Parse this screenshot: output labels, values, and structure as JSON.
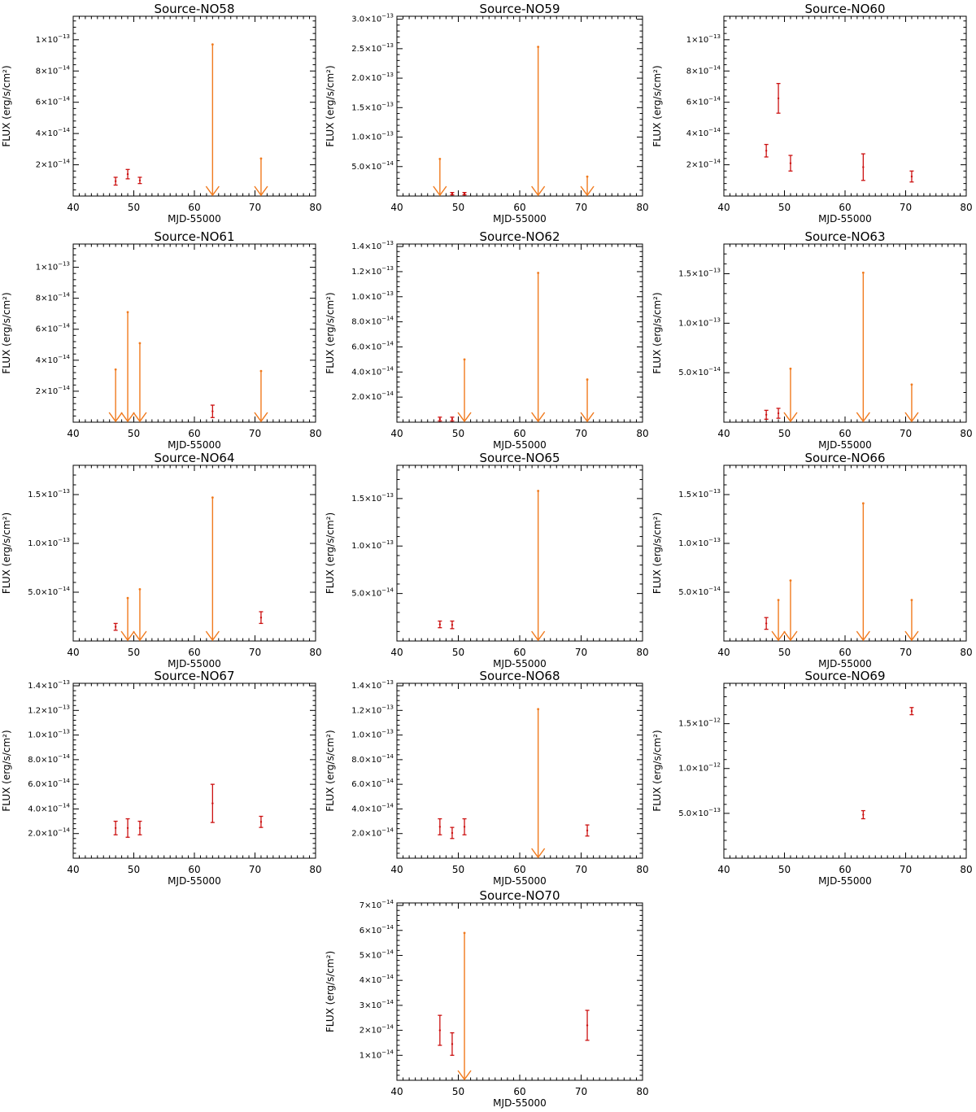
{
  "chart_data": [
    {
      "type": "scatter",
      "title": "Source-NO58",
      "xlabel": "MJD-55000",
      "ylabel": "FLUX (erg/s/cm²)",
      "xlim": [
        40,
        80
      ],
      "xticks": [
        40,
        50,
        60,
        70,
        80
      ],
      "ylim": [
        0,
        1.15e-13
      ],
      "yticks": [
        {
          "v": 2e-14,
          "m": "2×10",
          "e": "−14"
        },
        {
          "v": 4e-14,
          "m": "4×10",
          "e": "−14"
        },
        {
          "v": 6e-14,
          "m": "6×10",
          "e": "−14"
        },
        {
          "v": 8e-14,
          "m": "8×10",
          "e": "−14"
        },
        {
          "v": 1e-13,
          "m": "1×10",
          "e": "−13"
        }
      ],
      "detections": [
        {
          "x": 47,
          "lo": 7e-15,
          "hi": 1.2e-14
        },
        {
          "x": 49,
          "lo": 1.1e-14,
          "hi": 1.7e-14
        },
        {
          "x": 51,
          "lo": 8e-15,
          "hi": 1.2e-14
        }
      ],
      "upper_limits": [
        {
          "x": 63,
          "y": 9.7e-14
        },
        {
          "x": 71,
          "y": 2.4e-14
        }
      ]
    },
    {
      "type": "scatter",
      "title": "Source-NO59",
      "xlabel": "MJD-55000",
      "ylabel": "FLUX (erg/s/cm²)",
      "xlim": [
        40,
        80
      ],
      "xticks": [
        40,
        50,
        60,
        70,
        80
      ],
      "ylim": [
        0,
        3.05e-13
      ],
      "yticks": [
        {
          "v": 5e-14,
          "m": "5.0×10",
          "e": "−14"
        },
        {
          "v": 1e-13,
          "m": "1.0×10",
          "e": "−13"
        },
        {
          "v": 1.5e-13,
          "m": "1.5×10",
          "e": "−13"
        },
        {
          "v": 2e-13,
          "m": "2.0×10",
          "e": "−13"
        },
        {
          "v": 2.5e-13,
          "m": "2.5×10",
          "e": "−13"
        },
        {
          "v": 3e-13,
          "m": "3.0×10",
          "e": "−13"
        }
      ],
      "detections": [
        {
          "x": 49,
          "lo": 2e-15,
          "hi": 6e-15
        },
        {
          "x": 51,
          "lo": 2e-15,
          "hi": 6e-15
        }
      ],
      "upper_limits": [
        {
          "x": 47,
          "y": 6.3e-14
        },
        {
          "x": 63,
          "y": 2.53e-13
        },
        {
          "x": 71,
          "y": 3.3e-14
        }
      ]
    },
    {
      "type": "scatter",
      "title": "Source-NO60",
      "xlabel": "MJD-55000",
      "ylabel": "FLUX (erg/s/cm²)",
      "xlim": [
        40,
        80
      ],
      "xticks": [
        40,
        50,
        60,
        70,
        80
      ],
      "ylim": [
        0,
        1.15e-13
      ],
      "yticks": [
        {
          "v": 2e-14,
          "m": "2×10",
          "e": "−14"
        },
        {
          "v": 4e-14,
          "m": "4×10",
          "e": "−14"
        },
        {
          "v": 6e-14,
          "m": "6×10",
          "e": "−14"
        },
        {
          "v": 8e-14,
          "m": "8×10",
          "e": "−14"
        },
        {
          "v": 1e-13,
          "m": "1×10",
          "e": "−13"
        }
      ],
      "detections": [
        {
          "x": 47,
          "lo": 2.5e-14,
          "hi": 3.3e-14
        },
        {
          "x": 49,
          "lo": 5.3e-14,
          "hi": 7.2e-14
        },
        {
          "x": 51,
          "lo": 1.6e-14,
          "hi": 2.6e-14
        },
        {
          "x": 63,
          "lo": 1e-14,
          "hi": 2.7e-14
        },
        {
          "x": 71,
          "lo": 9e-15,
          "hi": 1.6e-14
        }
      ],
      "upper_limits": []
    },
    {
      "type": "scatter",
      "title": "Source-NO61",
      "xlabel": "MJD-55000",
      "ylabel": "FLUX (erg/s/cm²)",
      "xlim": [
        40,
        80
      ],
      "xticks": [
        40,
        50,
        60,
        70,
        80
      ],
      "ylim": [
        0,
        1.15e-13
      ],
      "yticks": [
        {
          "v": 2e-14,
          "m": "2×10",
          "e": "−14"
        },
        {
          "v": 4e-14,
          "m": "4×10",
          "e": "−14"
        },
        {
          "v": 6e-14,
          "m": "6×10",
          "e": "−14"
        },
        {
          "v": 8e-14,
          "m": "8×10",
          "e": "−14"
        },
        {
          "v": 1e-13,
          "m": "1×10",
          "e": "−13"
        }
      ],
      "detections": [
        {
          "x": 63,
          "lo": 3e-15,
          "hi": 1.1e-14
        }
      ],
      "upper_limits": [
        {
          "x": 47,
          "y": 3.4e-14
        },
        {
          "x": 49,
          "y": 7.1e-14
        },
        {
          "x": 51,
          "y": 5.1e-14
        },
        {
          "x": 71,
          "y": 3.3e-14
        }
      ]
    },
    {
      "type": "scatter",
      "title": "Source-NO62",
      "xlabel": "MJD-55000",
      "ylabel": "FLUX (erg/s/cm²)",
      "xlim": [
        40,
        80
      ],
      "xticks": [
        40,
        50,
        60,
        70,
        80
      ],
      "ylim": [
        0,
        1.42e-13
      ],
      "yticks": [
        {
          "v": 2e-14,
          "m": "2.0×10",
          "e": "−14"
        },
        {
          "v": 4e-14,
          "m": "4.0×10",
          "e": "−14"
        },
        {
          "v": 6e-14,
          "m": "6.0×10",
          "e": "−14"
        },
        {
          "v": 8e-14,
          "m": "8.0×10",
          "e": "−14"
        },
        {
          "v": 1e-13,
          "m": "1.0×10",
          "e": "−13"
        },
        {
          "v": 1.2e-13,
          "m": "1.2×10",
          "e": "−13"
        },
        {
          "v": 1.4e-13,
          "m": "1.4×10",
          "e": "−13"
        }
      ],
      "detections": [
        {
          "x": 47,
          "lo": 1e-15,
          "hi": 4e-15
        },
        {
          "x": 49,
          "lo": 1e-15,
          "hi": 4e-15
        }
      ],
      "upper_limits": [
        {
          "x": 51,
          "y": 5e-14
        },
        {
          "x": 63,
          "y": 1.19e-13
        },
        {
          "x": 71,
          "y": 3.4e-14
        }
      ]
    },
    {
      "type": "scatter",
      "title": "Source-NO63",
      "xlabel": "MJD-55000",
      "ylabel": "FLUX (erg/s/cm²)",
      "xlim": [
        40,
        80
      ],
      "xticks": [
        40,
        50,
        60,
        70,
        80
      ],
      "ylim": [
        0,
        1.8e-13
      ],
      "yticks": [
        {
          "v": 5e-14,
          "m": "5.0×10",
          "e": "−14"
        },
        {
          "v": 1e-13,
          "m": "1.0×10",
          "e": "−13"
        },
        {
          "v": 1.5e-13,
          "m": "1.5×10",
          "e": "−13"
        }
      ],
      "detections": [
        {
          "x": 47,
          "lo": 3e-15,
          "hi": 1.2e-14
        },
        {
          "x": 49,
          "lo": 4e-15,
          "hi": 1.4e-14
        }
      ],
      "upper_limits": [
        {
          "x": 51,
          "y": 5.4e-14
        },
        {
          "x": 63,
          "y": 1.51e-13
        },
        {
          "x": 71,
          "y": 3.8e-14
        }
      ]
    },
    {
      "type": "scatter",
      "title": "Source-NO64",
      "xlabel": "MJD-55000",
      "ylabel": "FLUX (erg/s/cm²)",
      "xlim": [
        40,
        80
      ],
      "xticks": [
        40,
        50,
        60,
        70,
        80
      ],
      "ylim": [
        0,
        1.8e-13
      ],
      "yticks": [
        {
          "v": 5e-14,
          "m": "5.0×10",
          "e": "−14"
        },
        {
          "v": 1e-13,
          "m": "1.0×10",
          "e": "−13"
        },
        {
          "v": 1.5e-13,
          "m": "1.5×10",
          "e": "−13"
        }
      ],
      "detections": [
        {
          "x": 47,
          "lo": 1.1e-14,
          "hi": 1.8e-14
        },
        {
          "x": 71,
          "lo": 1.8e-14,
          "hi": 3e-14
        }
      ],
      "upper_limits": [
        {
          "x": 49,
          "y": 4.4e-14
        },
        {
          "x": 51,
          "y": 5.3e-14
        },
        {
          "x": 63,
          "y": 1.47e-13
        }
      ]
    },
    {
      "type": "scatter",
      "title": "Source-NO65",
      "xlabel": "MJD-55000",
      "ylabel": "FLUX (erg/s/cm²)",
      "xlim": [
        40,
        80
      ],
      "xticks": [
        40,
        50,
        60,
        70,
        80
      ],
      "ylim": [
        0,
        1.85e-13
      ],
      "yticks": [
        {
          "v": 5e-14,
          "m": "5.0×10",
          "e": "−14"
        },
        {
          "v": 1e-13,
          "m": "1.0×10",
          "e": "−13"
        },
        {
          "v": 1.5e-13,
          "m": "1.5×10",
          "e": "−13"
        }
      ],
      "detections": [
        {
          "x": 47,
          "lo": 1.4e-14,
          "hi": 2.1e-14
        },
        {
          "x": 49,
          "lo": 1.3e-14,
          "hi": 2.1e-14
        }
      ],
      "upper_limits": [
        {
          "x": 63,
          "y": 1.58e-13
        }
      ]
    },
    {
      "type": "scatter",
      "title": "Source-NO66",
      "xlabel": "MJD-55000",
      "ylabel": "FLUX (erg/s/cm²)",
      "xlim": [
        40,
        80
      ],
      "xticks": [
        40,
        50,
        60,
        70,
        80
      ],
      "ylim": [
        0,
        1.8e-13
      ],
      "yticks": [
        {
          "v": 5e-14,
          "m": "5.0×10",
          "e": "−14"
        },
        {
          "v": 1e-13,
          "m": "1.0×10",
          "e": "−13"
        },
        {
          "v": 1.5e-13,
          "m": "1.5×10",
          "e": "−13"
        }
      ],
      "detections": [
        {
          "x": 47,
          "lo": 1.2e-14,
          "hi": 2.4e-14
        }
      ],
      "upper_limits": [
        {
          "x": 49,
          "y": 4.2e-14
        },
        {
          "x": 51,
          "y": 6.2e-14
        },
        {
          "x": 63,
          "y": 1.41e-13
        },
        {
          "x": 71,
          "y": 4.2e-14
        }
      ]
    },
    {
      "type": "scatter",
      "title": "Source-NO67",
      "xlabel": "MJD-55000",
      "ylabel": "FLUX (erg/s/cm²)",
      "xlim": [
        40,
        80
      ],
      "xticks": [
        40,
        50,
        60,
        70,
        80
      ],
      "ylim": [
        0,
        1.42e-13
      ],
      "yticks": [
        {
          "v": 2e-14,
          "m": "2.0×10",
          "e": "−14"
        },
        {
          "v": 4e-14,
          "m": "4.0×10",
          "e": "−14"
        },
        {
          "v": 6e-14,
          "m": "6.0×10",
          "e": "−14"
        },
        {
          "v": 8e-14,
          "m": "8.0×10",
          "e": "−14"
        },
        {
          "v": 1e-13,
          "m": "1.0×10",
          "e": "−13"
        },
        {
          "v": 1.2e-13,
          "m": "1.2×10",
          "e": "−13"
        },
        {
          "v": 1.4e-13,
          "m": "1.4×10",
          "e": "−13"
        }
      ],
      "detections": [
        {
          "x": 47,
          "lo": 1.9e-14,
          "hi": 3e-14
        },
        {
          "x": 49,
          "lo": 1.7e-14,
          "hi": 3.2e-14
        },
        {
          "x": 51,
          "lo": 1.9e-14,
          "hi": 3e-14
        },
        {
          "x": 63,
          "lo": 2.9e-14,
          "hi": 6e-14
        },
        {
          "x": 71,
          "lo": 2.5e-14,
          "hi": 3.4e-14
        }
      ],
      "upper_limits": []
    },
    {
      "type": "scatter",
      "title": "Source-NO68",
      "xlabel": "MJD-55000",
      "ylabel": "FLUX (erg/s/cm²)",
      "xlim": [
        40,
        80
      ],
      "xticks": [
        40,
        50,
        60,
        70,
        80
      ],
      "ylim": [
        0,
        1.42e-13
      ],
      "yticks": [
        {
          "v": 2e-14,
          "m": "2.0×10",
          "e": "−14"
        },
        {
          "v": 4e-14,
          "m": "4.0×10",
          "e": "−14"
        },
        {
          "v": 6e-14,
          "m": "6.0×10",
          "e": "−14"
        },
        {
          "v": 8e-14,
          "m": "8.0×10",
          "e": "−14"
        },
        {
          "v": 1e-13,
          "m": "1.0×10",
          "e": "−13"
        },
        {
          "v": 1.2e-13,
          "m": "1.2×10",
          "e": "−13"
        },
        {
          "v": 1.4e-13,
          "m": "1.4×10",
          "e": "−13"
        }
      ],
      "detections": [
        {
          "x": 47,
          "lo": 1.9e-14,
          "hi": 3.2e-14
        },
        {
          "x": 49,
          "lo": 1.6e-14,
          "hi": 2.5e-14
        },
        {
          "x": 51,
          "lo": 1.9e-14,
          "hi": 3.2e-14
        },
        {
          "x": 71,
          "lo": 1.8e-14,
          "hi": 2.7e-14
        }
      ],
      "upper_limits": [
        {
          "x": 63,
          "y": 1.21e-13
        }
      ]
    },
    {
      "type": "scatter",
      "title": "Source-NO69",
      "xlabel": "MJD-55000",
      "ylabel": "FLUX (erg/s/cm²)",
      "xlim": [
        40,
        80
      ],
      "xticks": [
        40,
        50,
        60,
        70,
        80
      ],
      "ylim": [
        0,
        1.95e-12
      ],
      "yticks": [
        {
          "v": 5e-13,
          "m": "5.0×10",
          "e": "−13"
        },
        {
          "v": 1e-12,
          "m": "1.0×10",
          "e": "−12"
        },
        {
          "v": 1.5e-12,
          "m": "1.5×10",
          "e": "−12"
        }
      ],
      "detections": [
        {
          "x": 63,
          "lo": 4.4e-13,
          "hi": 5.3e-13
        },
        {
          "x": 71,
          "lo": 1.6e-12,
          "hi": 1.68e-12
        }
      ],
      "upper_limits": []
    },
    {
      "type": "scatter",
      "title": "Source-NO70",
      "xlabel": "MJD-55000",
      "ylabel": "FLUX (erg/s/cm²)",
      "xlim": [
        40,
        80
      ],
      "xticks": [
        40,
        50,
        60,
        70,
        80
      ],
      "ylim": [
        0,
        7.1e-14
      ],
      "yticks": [
        {
          "v": 1e-14,
          "m": "1×10",
          "e": "−14"
        },
        {
          "v": 2e-14,
          "m": "2×10",
          "e": "−14"
        },
        {
          "v": 3e-14,
          "m": "3×10",
          "e": "−14"
        },
        {
          "v": 4e-14,
          "m": "4×10",
          "e": "−14"
        },
        {
          "v": 5e-14,
          "m": "5×10",
          "e": "−14"
        },
        {
          "v": 6e-14,
          "m": "6×10",
          "e": "−14"
        },
        {
          "v": 7e-14,
          "m": "7×10",
          "e": "−14"
        }
      ],
      "detections": [
        {
          "x": 47,
          "lo": 1.4e-14,
          "hi": 2.6e-14
        },
        {
          "x": 49,
          "lo": 1e-14,
          "hi": 1.9e-14
        },
        {
          "x": 71,
          "lo": 1.6e-14,
          "hi": 2.8e-14
        }
      ],
      "upper_limits": [
        {
          "x": 51,
          "y": 5.9e-14
        }
      ]
    }
  ],
  "colors": {
    "detection": "#cc1111",
    "upper_limit": "#f07a1e",
    "axis": "#000000"
  }
}
